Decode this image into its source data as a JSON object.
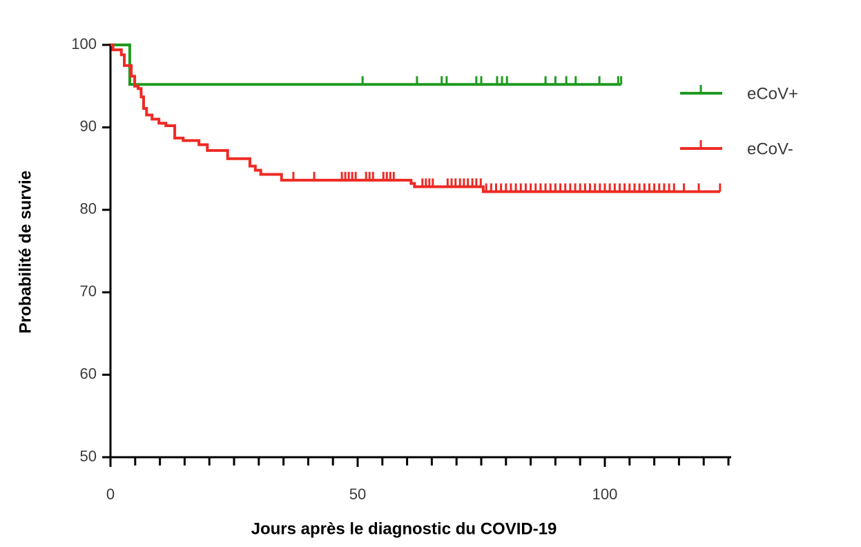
{
  "chart_data": {
    "type": "survival",
    "xlabel": "Jours après le diagnostic du COVID-19",
    "ylabel": "Probabilité de survie",
    "xlim": [
      0,
      125
    ],
    "ylim": [
      50,
      100
    ],
    "xticks": [
      0,
      50,
      100
    ],
    "xminorticks": [
      5,
      10,
      15,
      20,
      25,
      30,
      35,
      40,
      45,
      55,
      60,
      65,
      70,
      75,
      80,
      85,
      90,
      95,
      105,
      110,
      115,
      120,
      125
    ],
    "yticks": [
      50,
      60,
      70,
      80,
      90,
      100
    ],
    "legend": "right",
    "series": [
      {
        "name": "eCoV+",
        "color": "#1f9a1f",
        "x": [
          0,
          3.9,
          103.3
        ],
        "values": [
          100,
          95.2,
          95.2
        ],
        "censored": [
          51,
          62,
          67,
          68,
          74,
          75,
          78.2,
          79.2,
          80.2,
          88,
          90,
          92.2,
          94.1,
          98.9,
          102.7,
          103.3
        ]
      },
      {
        "name": "eCoV-",
        "color": "#ee2a24",
        "x": [
          0,
          0.5,
          2.2,
          2.8,
          4.2,
          4.9,
          5.6,
          6.2,
          6.7,
          7.3,
          8.4,
          9.8,
          11.2,
          13,
          14.7,
          17.9,
          19.6,
          23.7,
          28.2,
          29.3,
          30.4,
          34.6,
          60.8,
          61.5,
          75.4,
          123.3
        ],
        "values": [
          100,
          99.4,
          98.8,
          97.5,
          96.2,
          95,
          94.7,
          93.7,
          92.3,
          91.5,
          91,
          90.5,
          90.2,
          88.7,
          88.4,
          87.9,
          87.2,
          86.2,
          85.3,
          84.8,
          84.3,
          83.6,
          83.2,
          82.8,
          82.2,
          82.2
        ],
        "censored": [
          37,
          41.2,
          46.8,
          47.5,
          48.2,
          48.9,
          49.6,
          51.7,
          52.4,
          53.1,
          55.2,
          55.9,
          56.6,
          57.3,
          63.1,
          63.8,
          64.5,
          65.2,
          68.2,
          69,
          69.8,
          70.7,
          71.5,
          72.3,
          73.2,
          74,
          74.9,
          76,
          77,
          78,
          79,
          80,
          81,
          82,
          83,
          84,
          85,
          86,
          87,
          88,
          89,
          90,
          91,
          92,
          93,
          94,
          95,
          96,
          97,
          98,
          99,
          100,
          101,
          102,
          103,
          104,
          105,
          106,
          107,
          108,
          109,
          110,
          111,
          112,
          113,
          114,
          116,
          119,
          123.3
        ]
      }
    ]
  }
}
